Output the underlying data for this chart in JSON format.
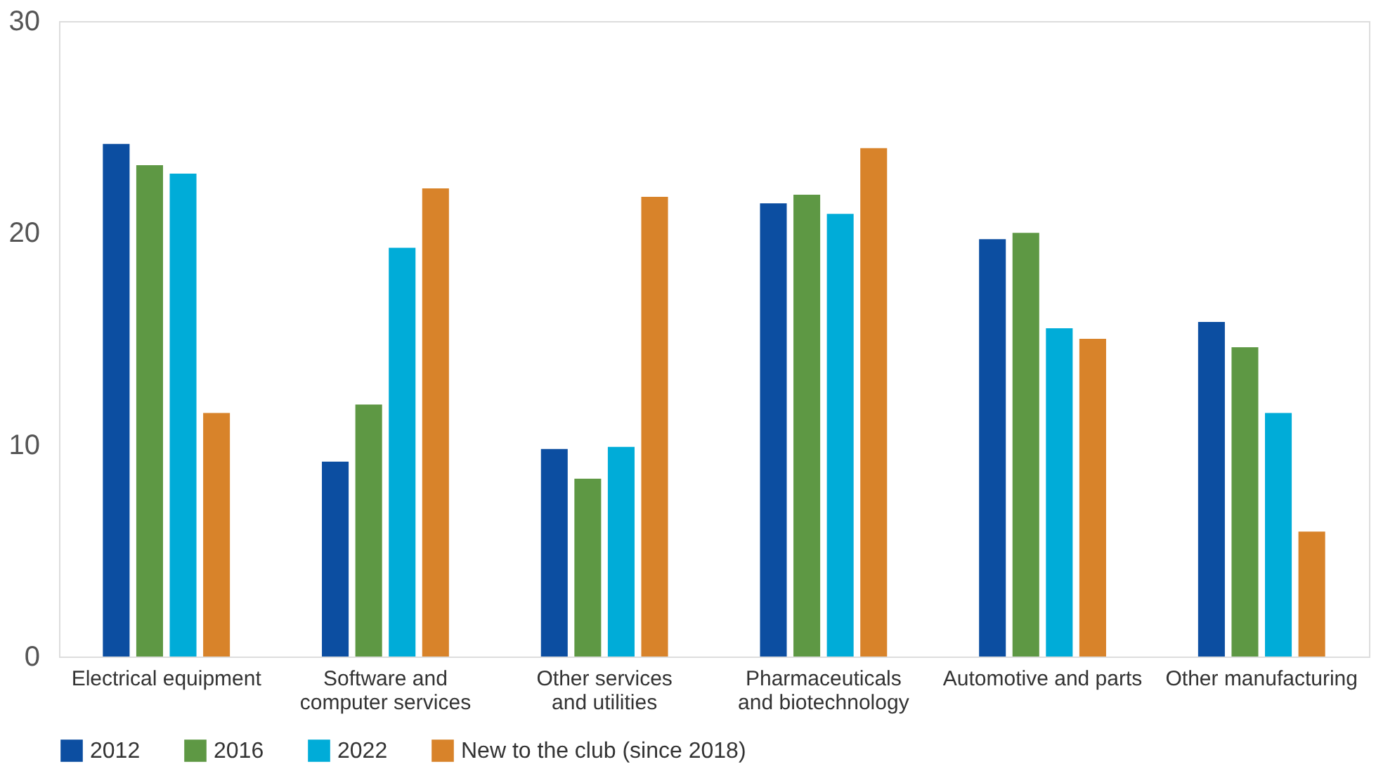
{
  "chart_data": {
    "type": "bar",
    "categories": [
      "Electrical equipment",
      "Software and\ncomputer services",
      "Other services\nand utilities",
      "Pharmaceuticals\nand biotechnology",
      "Automotive and parts",
      "Other manufacturing"
    ],
    "series": [
      {
        "name": "2012",
        "color": "#0c4ea1",
        "values": [
          24.2,
          9.2,
          9.8,
          21.4,
          19.7,
          15.8
        ]
      },
      {
        "name": "2016",
        "color": "#5e9844",
        "values": [
          23.2,
          11.9,
          8.4,
          21.8,
          20.0,
          14.6
        ]
      },
      {
        "name": "2022",
        "color": "#00acd8",
        "values": [
          22.8,
          19.3,
          9.9,
          20.9,
          15.5,
          11.5
        ]
      },
      {
        "name": "New to the club (since 2018)",
        "color": "#d8832a",
        "values": [
          11.5,
          22.1,
          21.7,
          24.0,
          15.0,
          5.9
        ]
      }
    ],
    "ylim": [
      0,
      30
    ],
    "yticks": [
      0,
      10,
      20,
      30
    ],
    "legend": "bottom left"
  }
}
